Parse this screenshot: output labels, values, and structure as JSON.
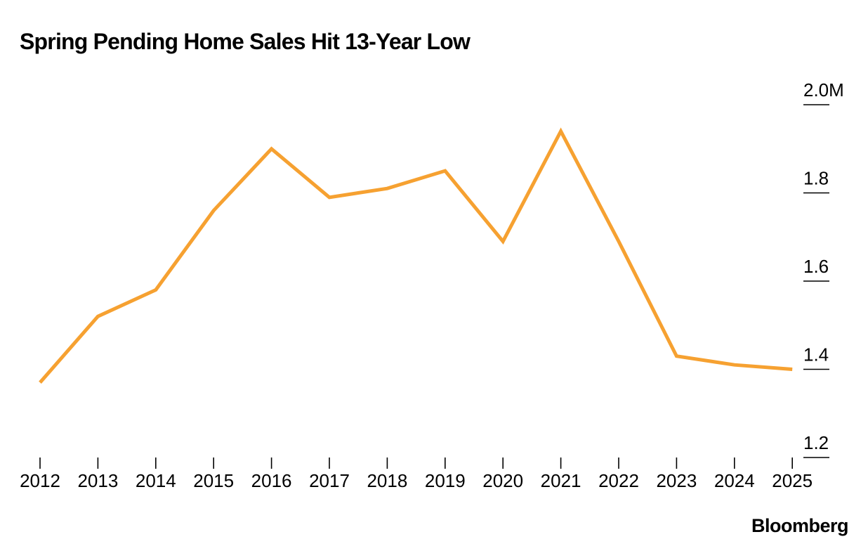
{
  "chart_data": {
    "type": "line",
    "title": "Spring Pending Home Sales Hit 13-Year Low",
    "xlabel": "",
    "ylabel": "",
    "x": [
      "2012",
      "2013",
      "2014",
      "2015",
      "2016",
      "2017",
      "2018",
      "2019",
      "2020",
      "2021",
      "2022",
      "2023",
      "2024",
      "2025"
    ],
    "series": [
      {
        "name": "",
        "values": [
          1.37,
          1.52,
          1.58,
          1.76,
          1.9,
          1.79,
          1.81,
          1.85,
          1.69,
          1.94,
          1.69,
          1.43,
          1.41,
          1.4
        ]
      }
    ],
    "ylim": [
      1.2,
      2.0
    ],
    "yticks": [
      {
        "value": 2.0,
        "label": "2.0M"
      },
      {
        "value": 1.8,
        "label": "1.8"
      },
      {
        "value": 1.6,
        "label": "1.6"
      },
      {
        "value": 1.4,
        "label": "1.4"
      },
      {
        "value": 1.2,
        "label": "1.2"
      }
    ],
    "y_axis_side": "right",
    "grid": false,
    "line_color": "#F6A131"
  },
  "source": "Bloomberg"
}
